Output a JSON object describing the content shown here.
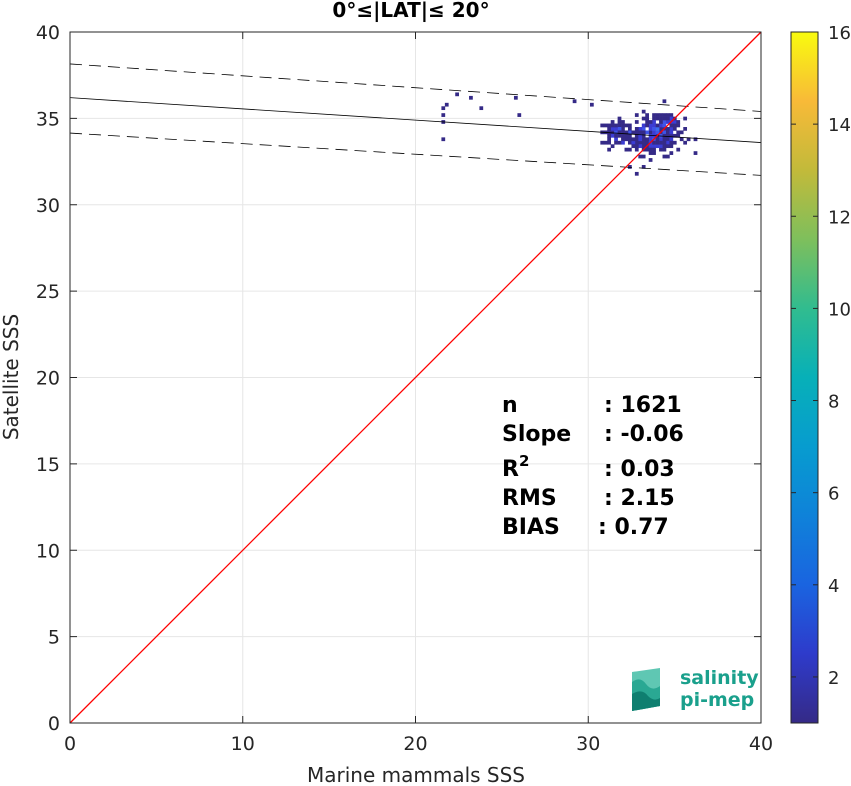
{
  "chart_data": {
    "type": "heatmap",
    "title": "0°≤|LAT|≤ 20°",
    "xlabel": "Marine mammals SSS",
    "ylabel": "Satellite SSS",
    "xlim": [
      0,
      40
    ],
    "ylim": [
      0,
      40
    ],
    "xticks": [
      0,
      10,
      20,
      30,
      40
    ],
    "yticks": [
      0,
      5,
      10,
      15,
      20,
      25,
      30,
      35,
      40
    ],
    "grid": true,
    "colorbar": {
      "range": [
        1,
        16
      ],
      "ticks": [
        2,
        4,
        6,
        8,
        10,
        12,
        14,
        16
      ],
      "colormap": "parula"
    },
    "identity_line": {
      "x": [
        0,
        40
      ],
      "y": [
        0,
        40
      ],
      "color": "#ff0000"
    },
    "regression_line": {
      "x": [
        0,
        40
      ],
      "y": [
        36.2,
        33.6
      ],
      "color": "#000000"
    },
    "confidence_upper": {
      "x": [
        0,
        40
      ],
      "y": [
        38.15,
        35.4
      ],
      "color": "#000000"
    },
    "confidence_lower": {
      "x": [
        0,
        40
      ],
      "y": [
        34.15,
        31.7
      ],
      "color": "#000000"
    },
    "stats": [
      {
        "label": "n",
        "value": ": 1621"
      },
      {
        "label": "Slope",
        "value": ": -0.06"
      },
      {
        "label": "R",
        "sup": "2",
        "value": ": 0.03"
      },
      {
        "label": "RMS",
        "value": ": 2.15"
      },
      {
        "label": "BIAS",
        "value": ": 0.77"
      }
    ],
    "clusters": [
      {
        "cx": 33.8,
        "cy": 34.0,
        "sx": 0.85,
        "sy": 0.55,
        "count": 260
      },
      {
        "cx": 31.6,
        "cy": 34.2,
        "sx": 0.45,
        "sy": 0.3,
        "count": 70
      },
      {
        "cx": 34.5,
        "cy": 34.9,
        "sx": 0.35,
        "sy": 0.35,
        "count": 40
      }
    ],
    "outliers": [
      [
        21.5,
        35.6
      ],
      [
        21.5,
        35.2
      ],
      [
        21.5,
        34.9
      ],
      [
        21.6,
        33.9
      ],
      [
        21.8,
        35.8
      ],
      [
        22.3,
        36.4
      ],
      [
        23.1,
        36.1
      ],
      [
        23.8,
        35.6
      ],
      [
        25.7,
        36.2
      ],
      [
        26.0,
        35.1
      ],
      [
        29.1,
        36.0
      ],
      [
        30.1,
        35.9
      ],
      [
        32.7,
        31.9
      ],
      [
        33.2,
        32.2
      ],
      [
        32.4,
        32.3
      ]
    ]
  },
  "logo": {
    "line1": "salinity",
    "line2": "pi-mep"
  }
}
